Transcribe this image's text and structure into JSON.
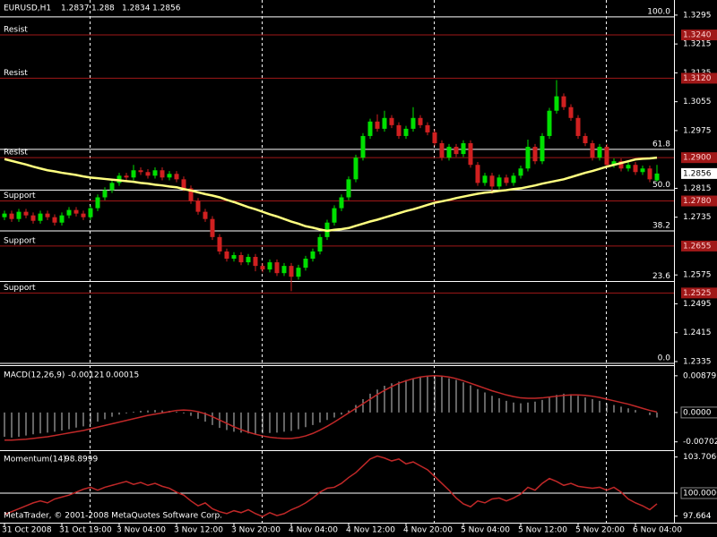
{
  "chart_data": [
    {
      "type": "candlestick",
      "symbol": "EURUSD,H1",
      "categories": [
        "31 Oct 2008",
        null,
        null,
        null,
        null,
        null,
        null,
        null,
        "31 Oct 19:00",
        null,
        null,
        null,
        null,
        null,
        null,
        null,
        "3 Nov 04:00",
        null,
        null,
        null,
        null,
        null,
        null,
        null,
        "3 Nov 12:00",
        null,
        null,
        null,
        null,
        null,
        null,
        null,
        "3 Nov 20:00",
        null,
        null,
        null,
        null,
        null,
        null,
        null,
        "4 Nov 04:00",
        null,
        null,
        null,
        null,
        null,
        null,
        null,
        "4 Nov 12:00",
        null,
        null,
        null,
        null,
        null,
        null,
        null,
        "4 Nov 20:00",
        null,
        null,
        null,
        null,
        null,
        null,
        null,
        "5 Nov 04:00",
        null,
        null,
        null,
        null,
        null,
        null,
        null,
        "5 Nov 12:00",
        null,
        null,
        null,
        null,
        null,
        null,
        null,
        "5 Nov 20:00",
        null,
        null,
        null,
        null,
        null,
        null,
        null,
        "6 Nov 04:00",
        null,
        null,
        null
      ],
      "ohlc": [
        [
          1.2735,
          1.2753,
          1.2727,
          1.2745
        ],
        [
          1.2745,
          1.2753,
          1.2722,
          1.273
        ],
        [
          1.273,
          1.2758,
          1.2722,
          1.275
        ],
        [
          1.275,
          1.2758,
          1.2732,
          1.274
        ],
        [
          1.274,
          1.2748,
          1.2717,
          1.2725
        ],
        [
          1.2725,
          1.2753,
          1.2717,
          1.2745
        ],
        [
          1.2745,
          1.2753,
          1.2727,
          1.2735
        ],
        [
          1.2735,
          1.2743,
          1.2712,
          1.272
        ],
        [
          1.272,
          1.2748,
          1.2712,
          1.274
        ],
        [
          1.274,
          1.2763,
          1.2732,
          1.2755
        ],
        [
          1.2755,
          1.2763,
          1.2737,
          1.2745
        ],
        [
          1.2745,
          1.2753,
          1.2727,
          1.2735
        ],
        [
          1.2735,
          1.2768,
          1.2727,
          1.276
        ],
        [
          1.276,
          1.2798,
          1.2752,
          1.279
        ],
        [
          1.279,
          1.2818,
          1.2782,
          1.281
        ],
        [
          1.281,
          1.2838,
          1.2802,
          1.283
        ],
        [
          1.283,
          1.2858,
          1.2822,
          1.285
        ],
        [
          1.285,
          1.2858,
          1.2837,
          1.2845
        ],
        [
          1.2845,
          1.288,
          1.2837,
          1.2865
        ],
        [
          1.2865,
          1.2873,
          1.2852,
          1.286
        ],
        [
          1.286,
          1.2868,
          1.2842,
          1.285
        ],
        [
          1.285,
          1.2873,
          1.2842,
          1.2865
        ],
        [
          1.2865,
          1.2873,
          1.2837,
          1.2845
        ],
        [
          1.2845,
          1.2863,
          1.2837,
          1.2855
        ],
        [
          1.2855,
          1.2863,
          1.2832,
          1.284
        ],
        [
          1.284,
          1.2848,
          1.2807,
          1.2815
        ],
        [
          1.2815,
          1.2823,
          1.2772,
          1.278
        ],
        [
          1.278,
          1.2788,
          1.2742,
          1.275
        ],
        [
          1.275,
          1.2758,
          1.2722,
          1.273
        ],
        [
          1.273,
          1.2738,
          1.2672,
          1.268
        ],
        [
          1.268,
          1.2688,
          1.2632,
          1.264
        ],
        [
          1.264,
          1.2648,
          1.2612,
          1.262
        ],
        [
          1.262,
          1.2638,
          1.2612,
          1.263
        ],
        [
          1.263,
          1.2638,
          1.2602,
          1.261
        ],
        [
          1.261,
          1.2633,
          1.2602,
          1.2625
        ],
        [
          1.2625,
          1.2633,
          1.2585,
          1.26
        ],
        [
          1.26,
          1.2608,
          1.2582,
          1.259
        ],
        [
          1.259,
          1.2618,
          1.2582,
          1.261
        ],
        [
          1.261,
          1.2618,
          1.2572,
          1.258
        ],
        [
          1.258,
          1.2608,
          1.2572,
          1.26
        ],
        [
          1.26,
          1.2608,
          1.253,
          1.257
        ],
        [
          1.257,
          1.2603,
          1.2562,
          1.2595
        ],
        [
          1.2595,
          1.2628,
          1.2587,
          1.262
        ],
        [
          1.262,
          1.2648,
          1.2612,
          1.264
        ],
        [
          1.264,
          1.2688,
          1.2632,
          1.268
        ],
        [
          1.268,
          1.2728,
          1.2672,
          1.272
        ],
        [
          1.272,
          1.2768,
          1.2712,
          1.276
        ],
        [
          1.276,
          1.2798,
          1.2752,
          1.279
        ],
        [
          1.279,
          1.2848,
          1.2782,
          1.284
        ],
        [
          1.284,
          1.2908,
          1.2832,
          1.29
        ],
        [
          1.29,
          1.2968,
          1.2892,
          1.296
        ],
        [
          1.296,
          1.3008,
          1.2952,
          1.3
        ],
        [
          1.3,
          1.302,
          1.2972,
          1.298
        ],
        [
          1.298,
          1.303,
          1.2972,
          1.301
        ],
        [
          1.301,
          1.3018,
          1.2982,
          1.299
        ],
        [
          1.299,
          1.2998,
          1.2952,
          1.296
        ],
        [
          1.296,
          1.2988,
          1.2952,
          1.298
        ],
        [
          1.298,
          1.304,
          1.2972,
          1.301
        ],
        [
          1.301,
          1.3018,
          1.2982,
          1.299
        ],
        [
          1.299,
          1.2998,
          1.2962,
          1.297
        ],
        [
          1.297,
          1.2978,
          1.2932,
          1.294
        ],
        [
          1.294,
          1.2948,
          1.2892,
          1.29
        ],
        [
          1.29,
          1.2938,
          1.2892,
          1.293
        ],
        [
          1.293,
          1.2938,
          1.2902,
          1.291
        ],
        [
          1.291,
          1.2948,
          1.2902,
          1.294
        ],
        [
          1.294,
          1.2948,
          1.2872,
          1.288
        ],
        [
          1.288,
          1.2888,
          1.2822,
          1.283
        ],
        [
          1.283,
          1.2858,
          1.2822,
          1.285
        ],
        [
          1.285,
          1.2858,
          1.28,
          1.282
        ],
        [
          1.282,
          1.2853,
          1.2812,
          1.2845
        ],
        [
          1.2845,
          1.2853,
          1.2822,
          1.283
        ],
        [
          1.283,
          1.2858,
          1.2822,
          1.285
        ],
        [
          1.285,
          1.2878,
          1.2842,
          1.287
        ],
        [
          1.287,
          1.295,
          1.2862,
          1.293
        ],
        [
          1.293,
          1.2938,
          1.2882,
          1.289
        ],
        [
          1.289,
          1.2968,
          1.2882,
          1.296
        ],
        [
          1.296,
          1.3038,
          1.2952,
          1.303
        ],
        [
          1.303,
          1.3115,
          1.3022,
          1.307
        ],
        [
          1.307,
          1.3078,
          1.3032,
          1.304
        ],
        [
          1.304,
          1.3048,
          1.3002,
          1.301
        ],
        [
          1.301,
          1.3018,
          1.2952,
          1.296
        ],
        [
          1.296,
          1.2968,
          1.2932,
          1.294
        ],
        [
          1.294,
          1.2948,
          1.2892,
          1.29
        ],
        [
          1.29,
          1.2938,
          1.2892,
          1.293
        ],
        [
          1.293,
          1.2938,
          1.2872,
          1.288
        ],
        [
          1.288,
          1.2898,
          1.2872,
          1.289
        ],
        [
          1.289,
          1.2898,
          1.2862,
          1.287
        ],
        [
          1.287,
          1.2888,
          1.2862,
          1.288
        ],
        [
          1.288,
          1.2888,
          1.2852,
          1.286
        ],
        [
          1.286,
          1.2878,
          1.2852,
          1.287
        ],
        [
          1.287,
          1.2878,
          1.2832,
          1.284
        ],
        [
          1.2837,
          1.288,
          1.2834,
          1.2856
        ]
      ],
      "bull_color": "#00e000",
      "bear_color": "#d02020",
      "ma": {
        "color": "#ffff80",
        "values": [
          1.2896,
          1.2891,
          1.2886,
          1.2881,
          1.2875,
          1.287,
          1.2865,
          1.2862,
          1.2858,
          1.2855,
          1.2852,
          1.2848,
          1.2845,
          1.2843,
          1.2841,
          1.2839,
          1.2837,
          1.2835,
          1.2833,
          1.283,
          1.2828,
          1.2825,
          1.2823,
          1.282,
          1.2818,
          1.2813,
          1.2809,
          1.2804,
          1.2799,
          1.2795,
          1.279,
          1.2783,
          1.2777,
          1.277,
          1.2763,
          1.2757,
          1.275,
          1.2743,
          1.2737,
          1.273,
          1.2723,
          1.2717,
          1.271,
          1.2706,
          1.2701,
          1.2697,
          1.27,
          1.2702,
          1.2705,
          1.2711,
          1.2717,
          1.2723,
          1.2728,
          1.2734,
          1.274,
          1.2746,
          1.2752,
          1.2757,
          1.2763,
          1.2769,
          1.2775,
          1.2779,
          1.2783,
          1.2788,
          1.2792,
          1.2796,
          1.28,
          1.2803,
          1.2805,
          1.2808,
          1.281,
          1.2813,
          1.2815,
          1.2819,
          1.2823,
          1.2828,
          1.2832,
          1.2836,
          1.284,
          1.2846,
          1.2852,
          1.2858,
          1.2863,
          1.2869,
          1.2875,
          1.288,
          1.2885,
          1.289,
          1.2895,
          1.2897,
          1.2898,
          1.29
        ]
      },
      "ylim": [
        1.2325,
        1.3317
      ],
      "yticks": [
        1.3295,
        1.3215,
        1.3135,
        1.3055,
        1.2975,
        1.2815,
        1.2735,
        1.2575,
        1.2495,
        1.2415,
        1.2335
      ],
      "level_color": "#a01818",
      "levels": [
        {
          "name": "Resist",
          "value": 1.324,
          "label": "1.3240"
        },
        {
          "name": "Resist",
          "value": 1.312,
          "label": "1.3120"
        },
        {
          "name": "Resist",
          "value": 1.29,
          "label": "1.2900"
        },
        {
          "name": "Support",
          "value": 1.278,
          "label": "1.2780"
        },
        {
          "name": "Support",
          "value": 1.2655
        },
        {
          "name": "Support",
          "value": 1.2525
        }
      ],
      "fib_color": "#ffffff",
      "fib": [
        {
          "level": {
            "value": 100,
            "label": "100.0"
          },
          "price": 1.329
        },
        {
          "level": 61.8,
          "price": 1.2923
        },
        {
          "level": {
            "value": 50,
            "label": "50.0"
          },
          "price": 1.281
        },
        {
          "level": 38.2,
          "price": 1.2697
        },
        {
          "level": 23.6,
          "price": 1.2557
        },
        {
          "level": {
            "value": 0,
            "label": "0.0"
          },
          "price": 1.233
        }
      ],
      "current_price": 1.2856
    },
    {
      "type": "macd",
      "title": "MACD(12,26,9)",
      "main": {
        "color": "#c8c8c8",
        "values": [
          -0.0058,
          -0.006,
          -0.0058,
          -0.0055,
          -0.0052,
          -0.005,
          -0.0048,
          -0.0046,
          -0.0043,
          -0.004,
          -0.0036,
          -0.0033,
          -0.0028,
          -0.0022,
          -0.0016,
          -0.001,
          -0.0005,
          -0.0002,
          0.0002,
          0.0004,
          0.0005,
          0.0006,
          0.0005,
          0.0004,
          0.0002,
          -0.0002,
          -0.0008,
          -0.0015,
          -0.0022,
          -0.003,
          -0.0037,
          -0.0042,
          -0.0046,
          -0.0048,
          -0.005,
          -0.0051,
          -0.005,
          -0.0049,
          -0.0048,
          -0.0046,
          -0.0044,
          -0.004,
          -0.0035,
          -0.003,
          -0.0024,
          -0.0018,
          -0.0012,
          -0.0005,
          0.0005,
          0.0018,
          0.0032,
          0.0045,
          0.0055,
          0.0064,
          0.007,
          0.0074,
          0.0078,
          0.0082,
          0.0085,
          0.0087,
          0.0088,
          0.0086,
          0.0082,
          0.0078,
          0.0072,
          0.0065,
          0.0056,
          0.0048,
          0.004,
          0.0034,
          0.0028,
          0.0024,
          0.0022,
          0.0024,
          0.0026,
          0.003,
          0.0036,
          0.0042,
          0.0045,
          0.0044,
          0.004,
          0.0036,
          0.0032,
          0.0028,
          0.0022,
          0.0018,
          0.0014,
          0.001,
          0.0006,
          0,
          -0.0006,
          -0.00121
        ]
      },
      "signal": {
        "color": "#c02828",
        "values": [
          -0.0066,
          -0.0066,
          -0.0065,
          -0.0064,
          -0.0062,
          -0.006,
          -0.0058,
          -0.0055,
          -0.0052,
          -0.0049,
          -0.0046,
          -0.0043,
          -0.0039,
          -0.0035,
          -0.0031,
          -0.0027,
          -0.0023,
          -0.0019,
          -0.0015,
          -0.0011,
          -0.0007,
          -0.0004,
          -0.0001,
          0.0002,
          0.0005,
          0.0006,
          0.0005,
          0.0002,
          -0.0003,
          -0.001,
          -0.0018,
          -0.0026,
          -0.0034,
          -0.0041,
          -0.0047,
          -0.0052,
          -0.0056,
          -0.0059,
          -0.0061,
          -0.0062,
          -0.0062,
          -0.006,
          -0.0056,
          -0.005,
          -0.0042,
          -0.0033,
          -0.0023,
          -0.0012,
          -0.0001,
          0.001,
          0.0021,
          0.0032,
          0.0043,
          0.0053,
          0.0062,
          0.007,
          0.0076,
          0.0081,
          0.0085,
          0.0087,
          0.0088,
          0.0087,
          0.0085,
          0.0081,
          0.0076,
          0.007,
          0.0064,
          0.0058,
          0.0052,
          0.0047,
          0.0042,
          0.0038,
          0.0035,
          0.0034,
          0.0034,
          0.0035,
          0.0037,
          0.0039,
          0.0041,
          0.0042,
          0.0042,
          0.0041,
          0.0039,
          0.0036,
          0.0032,
          0.0028,
          0.0024,
          0.002,
          0.0015,
          0.001,
          0.0005,
          0.00015
        ]
      },
      "ylim": [
        -0.0088,
        0.0109
      ],
      "yticks": [
        0.00879,
        {
          "value": 0,
          "label": "0.0000"
        },
        -0.00702
      ]
    },
    {
      "type": "momentum",
      "title": "Momentum(14)",
      "color": "#c02828",
      "values": [
        97.8,
        98.1,
        98.4,
        98.7,
        99,
        99.2,
        99,
        99.4,
        99.6,
        99.8,
        100.1,
        100.4,
        100.6,
        100.3,
        100.6,
        100.8,
        101,
        101.2,
        100.9,
        101.1,
        100.8,
        101,
        100.7,
        100.5,
        100.1,
        99.8,
        99.2,
        98.7,
        99,
        98.4,
        98.1,
        97.9,
        98.2,
        98,
        98.3,
        97.9,
        97.6,
        98,
        97.7,
        97.9,
        98.3,
        98.6,
        99,
        99.5,
        100.1,
        100.5,
        100.6,
        101,
        101.6,
        102.1,
        102.8,
        103.5,
        103.8,
        103.6,
        103.3,
        103.5,
        103,
        103.2,
        102.8,
        102.4,
        101.7,
        101,
        100.3,
        99.5,
        98.9,
        98.6,
        99.2,
        99,
        99.4,
        99.5,
        99.2,
        99.5,
        99.9,
        100.6,
        100.3,
        101,
        101.5,
        101.2,
        100.8,
        101,
        100.7,
        100.6,
        100.5,
        100.6,
        100.3,
        100.6,
        100.1,
        99.4,
        99,
        98.7,
        98.3,
        98.8999
      ],
      "hline": 100,
      "ylim": [
        96.97,
        104.22
      ],
      "yticks": [
        103.7066,
        {
          "value": 100,
          "label": "100.0000"
        },
        97.664
      ]
    }
  ],
  "copyright": "MetaTrader, © 2001-2008 MetaQuotes Software Corp."
}
